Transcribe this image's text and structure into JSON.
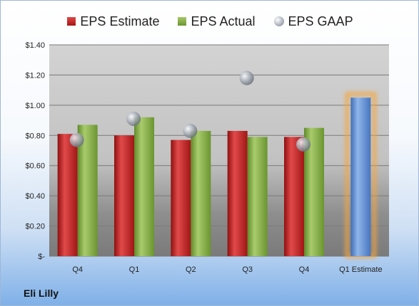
{
  "chart_data": {
    "type": "bar",
    "categories": [
      "Q4",
      "Q1",
      "Q2",
      "Q3",
      "Q4",
      "Q1 Estimate"
    ],
    "series": [
      {
        "name": "EPS Estimate",
        "values": [
          0.81,
          0.8,
          0.77,
          0.83,
          0.79,
          null
        ],
        "color": "#c62828"
      },
      {
        "name": "EPS Actual",
        "values": [
          0.87,
          0.92,
          0.83,
          0.79,
          0.85,
          null
        ],
        "color": "#7fa83a"
      },
      {
        "name": "EPS GAAP",
        "values": [
          0.77,
          0.91,
          0.83,
          1.18,
          0.74,
          null
        ],
        "color": "#a9afb8",
        "style": "bubble"
      }
    ],
    "estimate": {
      "category": "Q1 Estimate",
      "value": 1.05,
      "color": "#5b8fd6",
      "glow": "#f4a640"
    },
    "ylim": [
      0,
      1.4
    ],
    "yticks": [
      0,
      0.2,
      0.4,
      0.6,
      0.8,
      1.0,
      1.2,
      1.4
    ],
    "ytick_labels": [
      "$-",
      "$0.20",
      "$0.40",
      "$0.60",
      "$0.80",
      "$1.00",
      "$1.20",
      "$1.40"
    ],
    "grid": true,
    "legend": "top"
  },
  "company_name": "Eli Lilly"
}
